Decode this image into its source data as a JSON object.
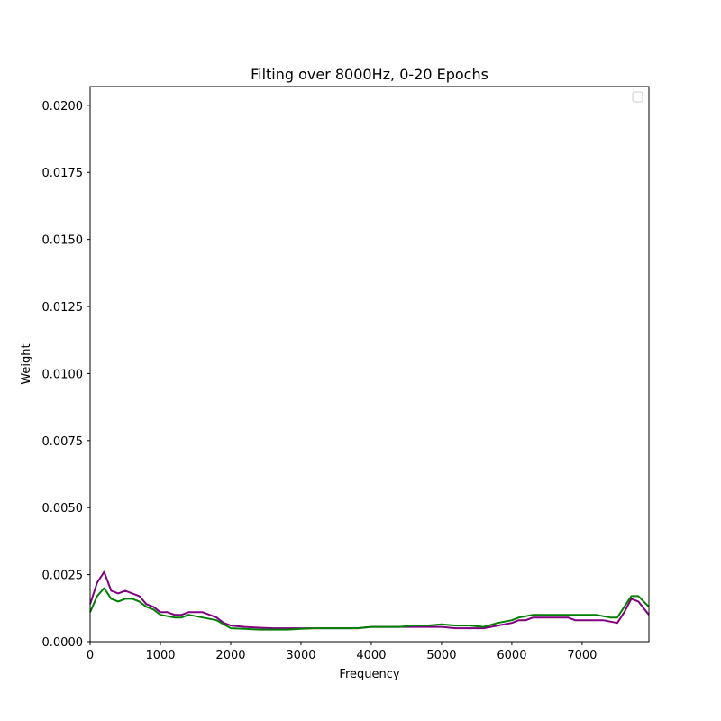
{
  "chart_data": {
    "type": "line",
    "title": "Filting over 8000Hz, 0-20 Epochs",
    "xlabel": "Frequency",
    "ylabel": "Weight",
    "xlim": [
      0,
      7950
    ],
    "ylim": [
      0,
      0.0207
    ],
    "x_ticks": [
      0,
      1000,
      2000,
      3000,
      4000,
      5000,
      6000,
      7000
    ],
    "x_tick_labels": [
      "0",
      "1000",
      "2000",
      "3000",
      "4000",
      "5000",
      "6000",
      "7000"
    ],
    "y_ticks": [
      0,
      0.0025,
      0.005,
      0.0075,
      0.01,
      0.0125,
      0.015,
      0.0175,
      0.02
    ],
    "y_tick_labels": [
      "0.0000",
      "0.0025",
      "0.0050",
      "0.0075",
      "0.0100",
      "0.0125",
      "0.0150",
      "0.0175",
      "0.0200"
    ],
    "grid": false,
    "legend": {
      "placement": "top-right",
      "entries": []
    },
    "x": [
      0,
      100,
      200,
      300,
      400,
      500,
      600,
      700,
      800,
      900,
      1000,
      1100,
      1200,
      1300,
      1400,
      1500,
      1600,
      1700,
      1800,
      1900,
      2000,
      2200,
      2400,
      2600,
      2800,
      3000,
      3200,
      3400,
      3600,
      3800,
      4000,
      4200,
      4400,
      4600,
      4800,
      5000,
      5200,
      5400,
      5600,
      5800,
      6000,
      6100,
      6200,
      6300,
      6400,
      6500,
      6600,
      6700,
      6800,
      6900,
      7000,
      7100,
      7200,
      7300,
      7400,
      7500,
      7600,
      7700,
      7800,
      7950
    ],
    "series": [
      {
        "color": "#800080",
        "values": [
          0.0014,
          0.0022,
          0.0026,
          0.0019,
          0.0018,
          0.0019,
          0.0018,
          0.0017,
          0.0014,
          0.0013,
          0.0011,
          0.0011,
          0.001,
          0.001,
          0.0011,
          0.0011,
          0.0011,
          0.001,
          0.0009,
          0.0007,
          0.0006,
          0.00055,
          0.00052,
          0.0005,
          0.0005,
          0.0005,
          0.0005,
          0.0005,
          0.0005,
          0.0005,
          0.00055,
          0.00055,
          0.00055,
          0.00055,
          0.00055,
          0.00055,
          0.0005,
          0.0005,
          0.0005,
          0.0006,
          0.0007,
          0.0008,
          0.0008,
          0.0009,
          0.0009,
          0.0009,
          0.0009,
          0.0009,
          0.0009,
          0.0008,
          0.0008,
          0.0008,
          0.0008,
          0.0008,
          0.00075,
          0.0007,
          0.0011,
          0.0016,
          0.0015,
          0.001
        ]
      },
      {
        "color": "#008000",
        "values": [
          0.0011,
          0.0017,
          0.002,
          0.0016,
          0.0015,
          0.0016,
          0.0016,
          0.0015,
          0.0013,
          0.0012,
          0.001,
          0.00095,
          0.0009,
          0.0009,
          0.001,
          0.00095,
          0.0009,
          0.00085,
          0.0008,
          0.00065,
          0.0005,
          0.00048,
          0.00045,
          0.00045,
          0.00045,
          0.00048,
          0.0005,
          0.0005,
          0.0005,
          0.0005,
          0.00055,
          0.00055,
          0.00055,
          0.0006,
          0.0006,
          0.00065,
          0.0006,
          0.0006,
          0.00055,
          0.0007,
          0.0008,
          0.0009,
          0.00095,
          0.001,
          0.001,
          0.001,
          0.001,
          0.001,
          0.001,
          0.001,
          0.001,
          0.001,
          0.001,
          0.00095,
          0.0009,
          0.0009,
          0.0013,
          0.0017,
          0.0017,
          0.0013
        ]
      }
    ]
  }
}
